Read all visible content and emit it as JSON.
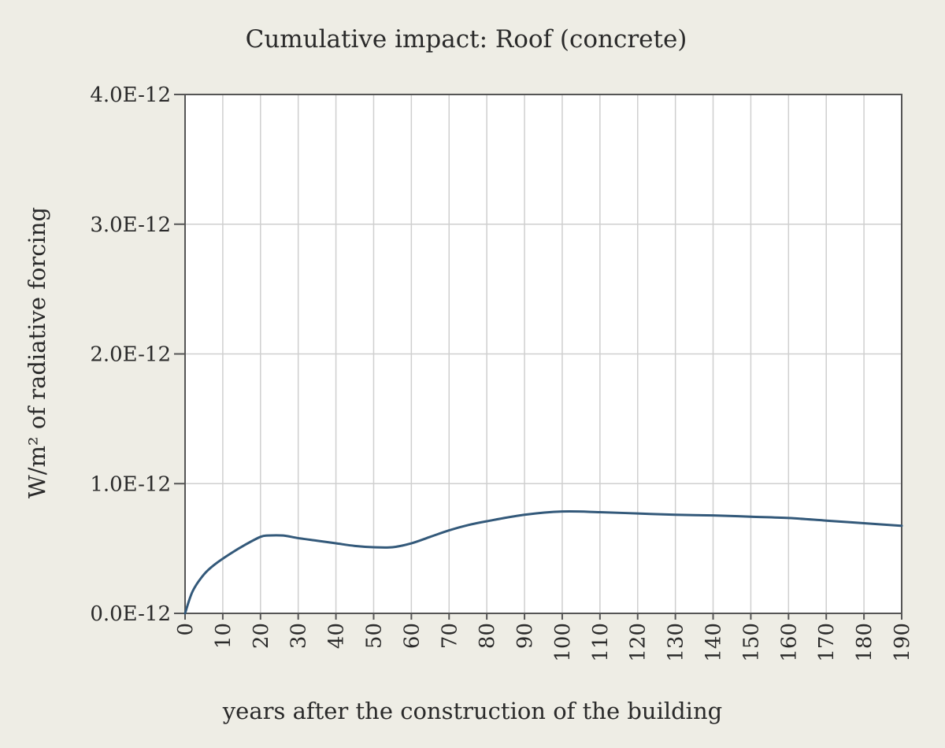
{
  "chart_data": {
    "type": "line",
    "title": "Cumulative impact: Roof (concrete)",
    "xlabel": "years after the construction of the building",
    "ylabel": "W/m² of radiative forcing",
    "xlim": [
      0,
      190
    ],
    "ylim": [
      0,
      4e-12
    ],
    "x_ticks": [
      0,
      10,
      20,
      30,
      40,
      50,
      60,
      70,
      80,
      90,
      100,
      110,
      120,
      130,
      140,
      150,
      160,
      170,
      180,
      190
    ],
    "x_tick_labels": [
      "0",
      "10",
      "20",
      "30",
      "40",
      "50",
      "60",
      "70",
      "80",
      "90",
      "100",
      "110",
      "120",
      "130",
      "140",
      "150",
      "160",
      "170",
      "180",
      "190"
    ],
    "y_ticks": [
      0,
      1e-12,
      2e-12,
      3e-12,
      4e-12
    ],
    "y_tick_labels": [
      "0.0E-12",
      "1.0E-12",
      "2.0E-12",
      "3.0E-12",
      "4.0E-12"
    ],
    "grid": true,
    "line_color": "#33597a",
    "series": [
      {
        "x": [
          0,
          2,
          5,
          8,
          12,
          16,
          20,
          22,
          26,
          30,
          35,
          40,
          45,
          50,
          55,
          60,
          65,
          70,
          75,
          80,
          90,
          100,
          110,
          120,
          130,
          140,
          150,
          160,
          170,
          180,
          190
        ],
        "values": [
          0,
          1.7e-13,
          3e-13,
          3.8e-13,
          4.6e-13,
          5.3e-13,
          5.9e-13,
          6e-13,
          6e-13,
          5.8e-13,
          5.6e-13,
          5.4e-13,
          5.2e-13,
          5.1e-13,
          5.1e-13,
          5.4e-13,
          5.9e-13,
          6.4e-13,
          6.8e-13,
          7.1e-13,
          7.6e-13,
          7.85e-13,
          7.8e-13,
          7.7e-13,
          7.6e-13,
          7.55e-13,
          7.45e-13,
          7.35e-13,
          7.15e-13,
          6.95e-13,
          6.75e-13
        ]
      }
    ]
  }
}
